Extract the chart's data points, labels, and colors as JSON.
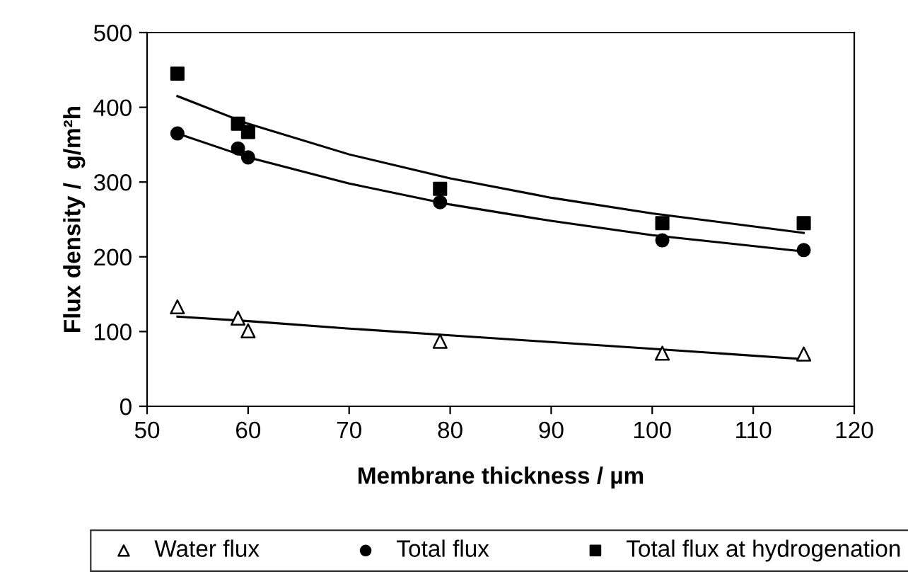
{
  "chart_data": {
    "type": "scatter",
    "xlabel": "Membrane thickness / µm",
    "ylabel": "Flux density /  g/m²h",
    "xlim": [
      50,
      120
    ],
    "xticks": [
      50,
      60,
      70,
      80,
      90,
      100,
      110,
      120
    ],
    "ylim": [
      0,
      500
    ],
    "yticks": [
      0,
      100,
      200,
      300,
      400,
      500
    ],
    "grid": false,
    "legend": "bottom",
    "series": [
      {
        "name": "Water flux",
        "color": "#000000",
        "marker": "triangle",
        "x": [
          53,
          59,
          60,
          79,
          101,
          115
        ],
        "values": [
          133,
          118,
          101,
          87,
          71,
          70
        ]
      },
      {
        "name": "Total flux",
        "color": "#000000",
        "marker": "circle",
        "x": [
          53,
          59,
          60,
          79,
          101,
          115
        ],
        "values": [
          365,
          345,
          333,
          273,
          222,
          209
        ]
      },
      {
        "name": "Total flux at hydrogenation",
        "color": "#000000",
        "marker": "square",
        "x": [
          53,
          59,
          60,
          79,
          101,
          115
        ],
        "values": [
          445,
          378,
          367,
          291,
          245,
          245
        ]
      },
      {
        "type": "line",
        "color": "#000000",
        "marker": "none",
        "x": [
          53,
          60,
          70,
          80,
          90,
          100,
          115
        ],
        "values": [
          120,
          114,
          104,
          95,
          86,
          77,
          63
        ]
      },
      {
        "type": "line",
        "color": "#000000",
        "marker": "none",
        "x": [
          53,
          60,
          70,
          80,
          90,
          100,
          115
        ],
        "values": [
          365,
          333,
          298,
          270,
          248,
          229,
          207
        ]
      },
      {
        "type": "line",
        "color": "#000000",
        "marker": "none",
        "x": [
          53,
          60,
          70,
          80,
          90,
          100,
          115
        ],
        "values": [
          415,
          378,
          337,
          305,
          279,
          258,
          232
        ]
      }
    ]
  }
}
